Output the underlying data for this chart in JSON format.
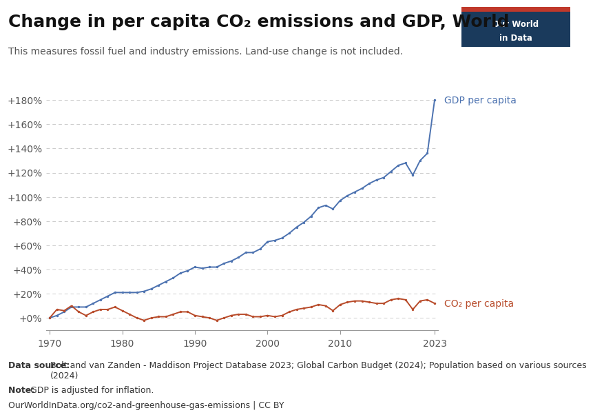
{
  "title": "Change in per capita CO₂ emissions and GDP, World",
  "subtitle": "This measures fossil fuel and industry emissions. Land-use change is not included.",
  "gdp_label": "GDP per capita",
  "co2_label": "CO₂ per capita",
  "gdp_color": "#4C72B0",
  "co2_color": "#B84B2A",
  "background_color": "#ffffff",
  "years_gdp": [
    1970,
    1971,
    1972,
    1973,
    1974,
    1975,
    1976,
    1977,
    1978,
    1979,
    1980,
    1981,
    1982,
    1983,
    1984,
    1985,
    1986,
    1987,
    1988,
    1989,
    1990,
    1991,
    1992,
    1993,
    1994,
    1995,
    1996,
    1997,
    1998,
    1999,
    2000,
    2001,
    2002,
    2003,
    2004,
    2005,
    2006,
    2007,
    2008,
    2009,
    2010,
    2011,
    2012,
    2013,
    2014,
    2015,
    2016,
    2017,
    2018,
    2019,
    2020,
    2021,
    2022,
    2023
  ],
  "gdp_values": [
    0,
    2,
    5,
    9,
    9,
    9,
    12,
    15,
    18,
    21,
    21,
    21,
    21,
    22,
    24,
    27,
    30,
    33,
    37,
    39,
    42,
    41,
    42,
    42,
    45,
    47,
    50,
    54,
    54,
    57,
    63,
    64,
    66,
    70,
    75,
    79,
    84,
    91,
    93,
    90,
    97,
    101,
    104,
    107,
    111,
    114,
    116,
    121,
    126,
    128,
    118,
    130,
    136,
    180
  ],
  "years_co2": [
    1970,
    1971,
    1972,
    1973,
    1974,
    1975,
    1976,
    1977,
    1978,
    1979,
    1980,
    1981,
    1982,
    1983,
    1984,
    1985,
    1986,
    1987,
    1988,
    1989,
    1990,
    1991,
    1992,
    1993,
    1994,
    1995,
    1996,
    1997,
    1998,
    1999,
    2000,
    2001,
    2002,
    2003,
    2004,
    2005,
    2006,
    2007,
    2008,
    2009,
    2010,
    2011,
    2012,
    2013,
    2014,
    2015,
    2016,
    2017,
    2018,
    2019,
    2020,
    2021,
    2022,
    2023
  ],
  "co2_values": [
    0,
    7,
    6,
    10,
    5,
    2,
    5,
    7,
    7,
    9,
    6,
    3,
    0,
    -2,
    0,
    1,
    1,
    3,
    5,
    5,
    2,
    1,
    0,
    -2,
    0,
    2,
    3,
    3,
    1,
    1,
    2,
    1,
    2,
    5,
    7,
    8,
    9,
    11,
    10,
    6,
    11,
    13,
    14,
    14,
    13,
    12,
    12,
    15,
    16,
    15,
    7,
    14,
    15,
    12
  ],
  "xlim": [
    1969.5,
    2023.5
  ],
  "ylim": [
    -10,
    195
  ],
  "yticks": [
    0,
    20,
    40,
    60,
    80,
    100,
    120,
    140,
    160,
    180
  ],
  "ytick_labels": [
    "+0%",
    "+20%",
    "+40%",
    "+60%",
    "+80%",
    "+100%",
    "+120%",
    "+140%",
    "+160%",
    "+180%"
  ],
  "xticks": [
    1970,
    1980,
    1990,
    2000,
    2010,
    2023
  ],
  "footer_datasource_bold": "Data source: ",
  "footer_datasource_rest": "Bolt and van Zanden - Maddison Project Database 2023; Global Carbon Budget (2024); Population based on various sources\n(2024)",
  "footer_note_bold": "Note: ",
  "footer_note_rest": "GDP is adjusted for inflation.",
  "footer_url": "OurWorldInData.org/co2-and-greenhouse-gas-emissions | CC BY",
  "logo_bg": "#1a3a5c",
  "logo_red": "#C0392B",
  "logo_text_line1": "Our World",
  "logo_text_line2": "in Data",
  "title_fontsize": 18,
  "subtitle_fontsize": 10,
  "tick_fontsize": 10,
  "label_fontsize": 10,
  "footer_fontsize": 9
}
